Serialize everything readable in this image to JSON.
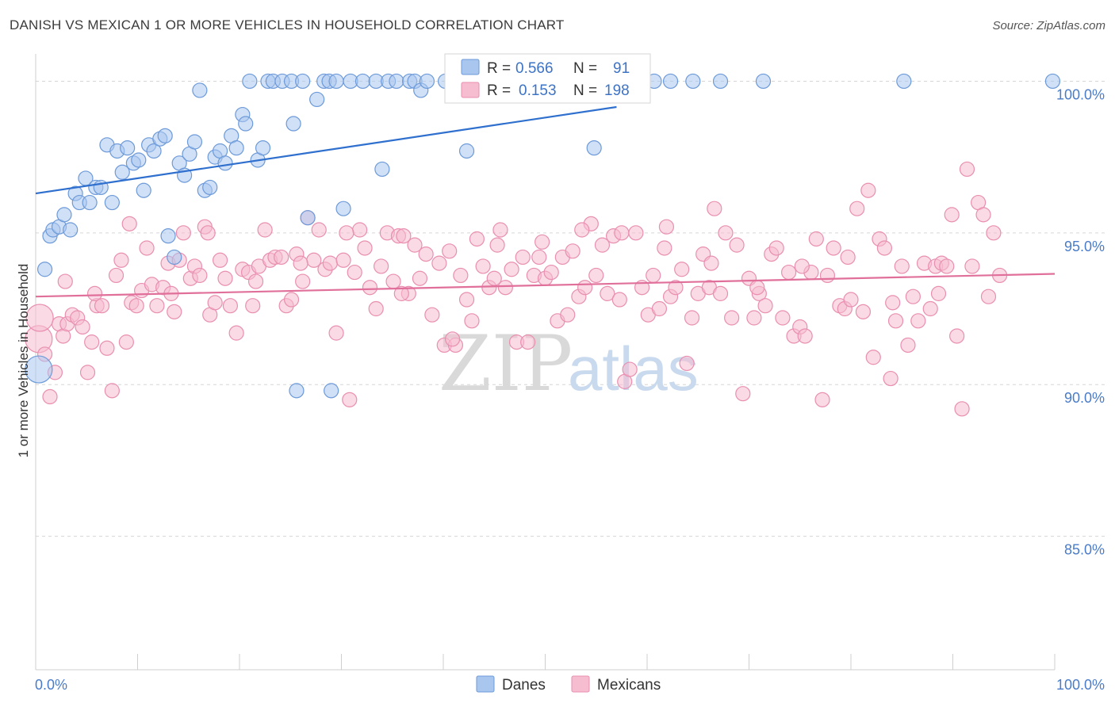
{
  "title": "DANISH VS MEXICAN 1 OR MORE VEHICLES IN HOUSEHOLD CORRELATION CHART",
  "source": "Source: ZipAtlas.com",
  "watermark": {
    "left": "ZIP",
    "right": "atlas"
  },
  "legend": {
    "danes": {
      "r_label": "R =",
      "r_value": "0.566",
      "n_label": "N =",
      "n_value": "91"
    },
    "mexicans": {
      "r_label": "R =",
      "r_value": "0.153",
      "n_label": "N =",
      "n_value": "198"
    }
  },
  "bottom_legend": {
    "danes": "Danes",
    "mexicans": "Mexicans"
  },
  "colors": {
    "danes_fill": "#a9c7ee",
    "danes_stroke": "#6d9ad9",
    "danes_line": "#2f6fce",
    "mexicans_fill": "#f6bcd0",
    "mexicans_stroke": "#e98fb0",
    "mexicans_line": "#e0709a",
    "tick_text": "#4a7cc9",
    "grid": "#d6d6d6"
  },
  "chart_data": {
    "type": "scatter",
    "title": "DANISH VS MEXICAN 1 OR MORE VEHICLES IN HOUSEHOLD CORRELATION CHART",
    "xlabel": "",
    "ylabel": "1 or more Vehicles in Household",
    "xlim": [
      0,
      100
    ],
    "ylim": [
      80.6,
      100.9
    ],
    "x_tick_labels": [
      "0.0%",
      "100.0%"
    ],
    "y_ticks": [
      85,
      90,
      95,
      100
    ],
    "y_tick_labels": [
      "85.0%",
      "90.0%",
      "95.0%",
      "100.0%"
    ],
    "grid": true,
    "legend_position": "top-center",
    "series": [
      {
        "name": "Danes",
        "r": 0.566,
        "n": 91,
        "trend": {
          "x0": 0,
          "y0": 96.3,
          "x1": 57,
          "y1": 99.15
        },
        "points": [
          [
            0.3,
            90.5
          ],
          [
            0.9,
            93.8
          ],
          [
            1.4,
            94.9
          ],
          [
            1.7,
            95.1
          ],
          [
            2.3,
            95.2
          ],
          [
            2.8,
            95.6
          ],
          [
            3.4,
            95.1
          ],
          [
            3.9,
            96.3
          ],
          [
            4.3,
            96.0
          ],
          [
            4.9,
            96.8
          ],
          [
            5.3,
            96.0
          ],
          [
            5.9,
            96.5
          ],
          [
            6.4,
            96.5
          ],
          [
            7.0,
            97.9
          ],
          [
            7.5,
            96.0
          ],
          [
            8.0,
            97.7
          ],
          [
            8.5,
            97.0
          ],
          [
            9.0,
            97.8
          ],
          [
            9.6,
            97.3
          ],
          [
            10.1,
            97.4
          ],
          [
            10.6,
            96.4
          ],
          [
            11.1,
            97.9
          ],
          [
            11.6,
            97.7
          ],
          [
            12.2,
            98.1
          ],
          [
            12.7,
            98.2
          ],
          [
            13.0,
            94.9
          ],
          [
            13.6,
            94.2
          ],
          [
            14.1,
            97.3
          ],
          [
            14.6,
            96.9
          ],
          [
            15.1,
            97.6
          ],
          [
            15.6,
            98.0
          ],
          [
            16.1,
            99.7
          ],
          [
            16.6,
            96.4
          ],
          [
            17.1,
            96.5
          ],
          [
            17.6,
            97.5
          ],
          [
            18.1,
            97.7
          ],
          [
            18.6,
            97.3
          ],
          [
            19.2,
            98.2
          ],
          [
            19.7,
            97.8
          ],
          [
            20.3,
            98.9
          ],
          [
            20.6,
            98.6
          ],
          [
            21.0,
            100.0
          ],
          [
            21.8,
            97.4
          ],
          [
            22.3,
            97.8
          ],
          [
            22.8,
            100.0
          ],
          [
            23.3,
            100.0
          ],
          [
            24.2,
            100.0
          ],
          [
            25.1,
            100.0
          ],
          [
            25.3,
            98.6
          ],
          [
            25.6,
            89.8
          ],
          [
            26.2,
            100.0
          ],
          [
            26.7,
            95.5
          ],
          [
            27.6,
            99.4
          ],
          [
            28.3,
            100.0
          ],
          [
            28.8,
            100.0
          ],
          [
            29.0,
            89.8
          ],
          [
            29.5,
            100.0
          ],
          [
            30.2,
            95.8
          ],
          [
            30.9,
            100.0
          ],
          [
            32.1,
            100.0
          ],
          [
            33.4,
            100.0
          ],
          [
            34.0,
            97.1
          ],
          [
            34.6,
            100.0
          ],
          [
            35.4,
            100.0
          ],
          [
            36.7,
            100.0
          ],
          [
            37.2,
            100.0
          ],
          [
            37.8,
            99.7
          ],
          [
            38.4,
            100.0
          ],
          [
            40.2,
            100.0
          ],
          [
            41.5,
            100.0
          ],
          [
            42.3,
            97.7
          ],
          [
            42.8,
            100.0
          ],
          [
            43.6,
            100.0
          ],
          [
            44.1,
            100.0
          ],
          [
            45.0,
            100.0
          ],
          [
            47.1,
            100.0
          ],
          [
            48.6,
            100.0
          ],
          [
            49.5,
            100.0
          ],
          [
            52.5,
            100.0
          ],
          [
            54.1,
            100.0
          ],
          [
            54.8,
            97.8
          ],
          [
            55.9,
            100.0
          ],
          [
            57.3,
            100.0
          ],
          [
            58.2,
            100.0
          ],
          [
            60.7,
            100.0
          ],
          [
            62.3,
            100.0
          ],
          [
            64.5,
            100.0
          ],
          [
            67.2,
            100.0
          ],
          [
            71.4,
            100.0
          ],
          [
            85.2,
            100.0
          ],
          [
            99.8,
            100.0
          ]
        ]
      },
      {
        "name": "Mexicans",
        "r": 0.153,
        "n": 198,
        "trend": {
          "x0": 0,
          "y0": 92.9,
          "x1": 100,
          "y1": 93.65
        },
        "points": [
          [
            0.3,
            91.5
          ],
          [
            0.9,
            91.0
          ],
          [
            1.4,
            89.6
          ],
          [
            1.9,
            90.4
          ],
          [
            2.3,
            92.0
          ],
          [
            2.7,
            91.6
          ],
          [
            3.1,
            92.0
          ],
          [
            3.6,
            92.3
          ],
          [
            4.1,
            92.2
          ],
          [
            4.6,
            91.9
          ],
          [
            5.1,
            90.4
          ],
          [
            5.5,
            91.4
          ],
          [
            6.0,
            92.6
          ],
          [
            6.5,
            92.6
          ],
          [
            7.0,
            91.2
          ],
          [
            7.5,
            89.8
          ],
          [
            7.9,
            93.6
          ],
          [
            8.4,
            94.1
          ],
          [
            8.9,
            91.4
          ],
          [
            9.4,
            92.7
          ],
          [
            9.9,
            92.6
          ],
          [
            10.4,
            93.1
          ],
          [
            10.9,
            94.5
          ],
          [
            11.4,
            93.3
          ],
          [
            11.9,
            92.6
          ],
          [
            12.5,
            93.2
          ],
          [
            13.0,
            94.0
          ],
          [
            13.6,
            92.4
          ],
          [
            14.1,
            94.1
          ],
          [
            14.5,
            95.0
          ],
          [
            15.2,
            93.5
          ],
          [
            15.6,
            93.9
          ],
          [
            16.1,
            93.6
          ],
          [
            16.6,
            95.2
          ],
          [
            17.1,
            92.3
          ],
          [
            17.6,
            92.7
          ],
          [
            18.1,
            94.1
          ],
          [
            18.6,
            93.5
          ],
          [
            19.1,
            92.6
          ],
          [
            19.7,
            91.7
          ],
          [
            20.3,
            93.8
          ],
          [
            20.9,
            93.7
          ],
          [
            21.3,
            92.6
          ],
          [
            21.9,
            93.9
          ],
          [
            22.5,
            95.1
          ],
          [
            23.0,
            94.1
          ],
          [
            23.5,
            94.2
          ],
          [
            24.1,
            94.2
          ],
          [
            24.6,
            92.6
          ],
          [
            25.1,
            92.8
          ],
          [
            25.6,
            94.3
          ],
          [
            26.2,
            93.4
          ],
          [
            26.7,
            95.5
          ],
          [
            27.3,
            94.1
          ],
          [
            27.8,
            95.1
          ],
          [
            28.4,
            93.8
          ],
          [
            28.9,
            94.0
          ],
          [
            29.5,
            91.7
          ],
          [
            30.2,
            94.1
          ],
          [
            30.8,
            89.5
          ],
          [
            31.3,
            93.7
          ],
          [
            31.8,
            95.1
          ],
          [
            32.3,
            94.5
          ],
          [
            32.8,
            93.2
          ],
          [
            33.4,
            92.5
          ],
          [
            33.9,
            93.9
          ],
          [
            34.5,
            95.0
          ],
          [
            35.1,
            93.4
          ],
          [
            35.6,
            94.9
          ],
          [
            36.1,
            94.9
          ],
          [
            36.6,
            93.0
          ],
          [
            37.2,
            94.6
          ],
          [
            37.7,
            93.5
          ],
          [
            38.3,
            94.3
          ],
          [
            38.9,
            92.3
          ],
          [
            39.6,
            94.0
          ],
          [
            40.1,
            91.3
          ],
          [
            40.6,
            94.4
          ],
          [
            41.2,
            91.3
          ],
          [
            41.7,
            93.6
          ],
          [
            42.3,
            92.8
          ],
          [
            42.8,
            92.1
          ],
          [
            43.3,
            94.8
          ],
          [
            43.9,
            93.9
          ],
          [
            44.5,
            93.2
          ],
          [
            45.0,
            93.5
          ],
          [
            45.6,
            95.1
          ],
          [
            46.1,
            93.2
          ],
          [
            46.7,
            93.8
          ],
          [
            47.2,
            91.4
          ],
          [
            47.8,
            94.2
          ],
          [
            48.3,
            91.4
          ],
          [
            48.9,
            93.6
          ],
          [
            49.4,
            94.2
          ],
          [
            50.0,
            93.5
          ],
          [
            50.6,
            93.7
          ],
          [
            51.2,
            92.1
          ],
          [
            51.7,
            94.2
          ],
          [
            52.2,
            92.3
          ],
          [
            52.7,
            94.4
          ],
          [
            53.3,
            92.9
          ],
          [
            53.9,
            93.2
          ],
          [
            54.5,
            95.3
          ],
          [
            55.0,
            93.6
          ],
          [
            55.6,
            94.6
          ],
          [
            56.1,
            93.0
          ],
          [
            56.7,
            94.9
          ],
          [
            57.3,
            92.8
          ],
          [
            57.8,
            90.1
          ],
          [
            58.3,
            90.5
          ],
          [
            58.9,
            95.0
          ],
          [
            59.5,
            93.2
          ],
          [
            60.1,
            92.3
          ],
          [
            60.6,
            93.6
          ],
          [
            61.2,
            92.5
          ],
          [
            61.7,
            94.5
          ],
          [
            62.3,
            92.9
          ],
          [
            62.8,
            93.2
          ],
          [
            63.4,
            93.8
          ],
          [
            63.9,
            90.7
          ],
          [
            64.4,
            92.2
          ],
          [
            65.0,
            93.0
          ],
          [
            65.5,
            94.3
          ],
          [
            66.1,
            93.2
          ],
          [
            66.6,
            95.8
          ],
          [
            67.2,
            93.0
          ],
          [
            67.7,
            95.0
          ],
          [
            68.3,
            92.2
          ],
          [
            68.8,
            94.6
          ],
          [
            69.4,
            89.7
          ],
          [
            70.0,
            93.5
          ],
          [
            70.5,
            92.2
          ],
          [
            71.0,
            93.0
          ],
          [
            71.6,
            92.6
          ],
          [
            72.2,
            94.3
          ],
          [
            72.7,
            94.5
          ],
          [
            73.3,
            92.2
          ],
          [
            73.9,
            93.7
          ],
          [
            74.4,
            91.6
          ],
          [
            75.0,
            91.9
          ],
          [
            75.5,
            91.6
          ],
          [
            76.1,
            93.7
          ],
          [
            76.6,
            94.8
          ],
          [
            77.2,
            89.5
          ],
          [
            77.7,
            93.6
          ],
          [
            78.3,
            94.5
          ],
          [
            78.9,
            92.6
          ],
          [
            79.4,
            92.5
          ],
          [
            80.0,
            92.8
          ],
          [
            80.6,
            95.8
          ],
          [
            81.2,
            92.4
          ],
          [
            81.7,
            96.4
          ],
          [
            82.2,
            90.9
          ],
          [
            82.8,
            94.8
          ],
          [
            83.3,
            94.5
          ],
          [
            83.9,
            90.2
          ],
          [
            84.4,
            92.1
          ],
          [
            85.0,
            93.9
          ],
          [
            85.6,
            91.3
          ],
          [
            86.1,
            92.9
          ],
          [
            86.6,
            92.1
          ],
          [
            87.2,
            94.0
          ],
          [
            87.8,
            92.5
          ],
          [
            88.3,
            93.9
          ],
          [
            88.9,
            94.0
          ],
          [
            89.4,
            93.9
          ],
          [
            89.9,
            95.6
          ],
          [
            90.4,
            91.6
          ],
          [
            90.9,
            89.2
          ],
          [
            91.4,
            97.1
          ],
          [
            91.9,
            93.9
          ],
          [
            92.5,
            96.0
          ],
          [
            93.0,
            95.6
          ],
          [
            93.5,
            92.9
          ],
          [
            94.0,
            95.0
          ],
          [
            94.6,
            93.6
          ],
          [
            0.4,
            92.2
          ],
          [
            2.9,
            93.4
          ],
          [
            5.8,
            93.0
          ],
          [
            9.2,
            95.3
          ],
          [
            13.3,
            93.0
          ],
          [
            16.9,
            95.0
          ],
          [
            21.6,
            93.4
          ],
          [
            26.0,
            94.0
          ],
          [
            30.5,
            95.0
          ],
          [
            35.9,
            93.0
          ],
          [
            40.9,
            91.5
          ],
          [
            45.3,
            94.6
          ],
          [
            49.7,
            94.7
          ],
          [
            53.6,
            95.1
          ],
          [
            57.5,
            95.0
          ],
          [
            61.9,
            95.2
          ],
          [
            66.3,
            94.0
          ],
          [
            70.8,
            93.2
          ],
          [
            75.2,
            93.9
          ],
          [
            79.7,
            94.2
          ],
          [
            84.1,
            92.7
          ],
          [
            88.6,
            93.0
          ]
        ]
      }
    ]
  }
}
